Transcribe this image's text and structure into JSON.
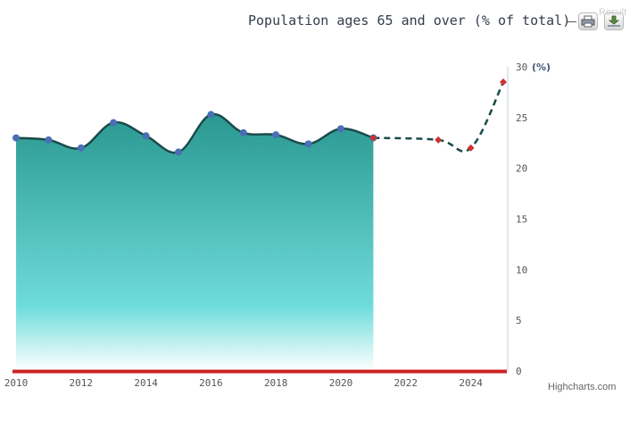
{
  "title": "Population ages 65 and over (% of total)",
  "result_label": "Result",
  "credits": "Highcharts.com",
  "icons": {
    "print": "print-icon",
    "export": "download-icon"
  },
  "colors": {
    "area_top": "#2a9890",
    "area_bottom": "#ffffff",
    "area_mid": "#6fdcdc",
    "line": "#1a4a4a",
    "actual_marker": "#4a6fb5",
    "forecast_marker": "#cc3333",
    "baseline": "#cc2222",
    "axis": "#c0d0e0"
  },
  "chart_data": {
    "type": "area",
    "title": "Population ages 65 and over (% of total)",
    "xlabel": "",
    "ylabel": "",
    "y_unit": "(%)",
    "xlim": [
      2010,
      2025
    ],
    "ylim": [
      0,
      30
    ],
    "x_ticks": [
      2010,
      2012,
      2014,
      2016,
      2018,
      2020,
      2022,
      2024
    ],
    "y_ticks": [
      0,
      5,
      10,
      15,
      20,
      25,
      30
    ],
    "y_axis_position": "right",
    "grid": false,
    "series": [
      {
        "style": "solid-area",
        "x": [
          2010,
          2011,
          2012,
          2013,
          2014,
          2015,
          2016,
          2017,
          2018,
          2019,
          2020,
          2021
        ],
        "values": [
          23.0,
          22.8,
          22.0,
          24.5,
          23.2,
          21.6,
          25.3,
          23.5,
          23.3,
          22.4,
          23.9,
          23.0
        ]
      },
      {
        "style": "dashed-line",
        "x": [
          2021,
          2023,
          2024,
          2025
        ],
        "values": [
          23.0,
          22.8,
          22.0,
          28.5
        ]
      }
    ]
  }
}
